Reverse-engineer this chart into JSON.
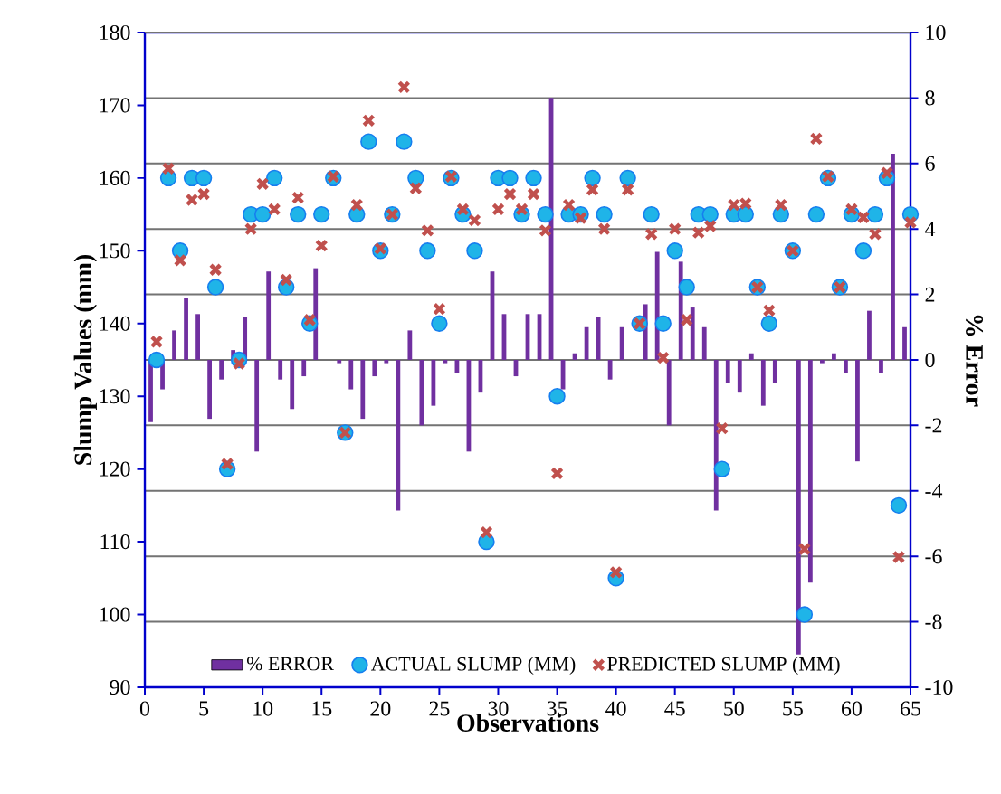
{
  "chart_data": {
    "type": "scatter",
    "xlabel": "Observations",
    "ylabel": "Slump Values (mm)",
    "y2label": "% Error",
    "xlim": [
      0,
      65
    ],
    "xticks": [
      0,
      5,
      10,
      15,
      20,
      25,
      30,
      35,
      40,
      45,
      50,
      55,
      60,
      65
    ],
    "ylim": [
      90,
      180
    ],
    "yticks": [
      90,
      100,
      110,
      120,
      130,
      140,
      150,
      160,
      170,
      180
    ],
    "y2lim": [
      -10,
      10
    ],
    "y2ticks": [
      -10,
      -8,
      -6,
      -4,
      -2,
      0,
      2,
      4,
      6,
      8,
      10
    ],
    "grid": "y",
    "legend": "bottom",
    "series": [
      {
        "name": "% ERROR",
        "type": "bar",
        "axis": "y2",
        "color": "#7030a0",
        "x": [
          0.5,
          1.5,
          2.5,
          3.5,
          4.5,
          5.5,
          6.5,
          7.5,
          8.5,
          9.5,
          10.5,
          11.5,
          12.5,
          13.5,
          14.5,
          15.5,
          16.5,
          17.5,
          18.5,
          19.5,
          20.5,
          21.5,
          22.5,
          23.5,
          24.5,
          25.5,
          26.5,
          27.5,
          28.5,
          29.5,
          30.5,
          31.5,
          32.5,
          33.5,
          34.5,
          35.5,
          36.5,
          37.5,
          38.5,
          39.5,
          40.5,
          41.5,
          42.5,
          43.5,
          44.5,
          45.5,
          46.5,
          47.5,
          48.5,
          49.5,
          50.5,
          51.5,
          52.5,
          53.5,
          54.5,
          55.5,
          56.5,
          57.5,
          58.5,
          59.5,
          60.5,
          61.5,
          62.5,
          63.5,
          64.5
        ],
        "values": [
          -1.9,
          -0.9,
          0.9,
          1.9,
          1.4,
          -1.8,
          -0.6,
          0.3,
          1.3,
          -2.8,
          2.7,
          -0.6,
          -1.5,
          -0.5,
          2.8,
          0,
          -0.1,
          -0.9,
          -1.8,
          -0.5,
          -0.1,
          -4.6,
          0.9,
          -2.0,
          -1.4,
          -0.1,
          -0.4,
          -2.8,
          -1.0,
          2.7,
          1.4,
          -0.5,
          1.4,
          1.4,
          8.0,
          -0.9,
          0.2,
          1.0,
          1.3,
          -0.6,
          1.0,
          0,
          1.7,
          3.3,
          -2.0,
          3.0,
          1.6,
          1.0,
          -4.6,
          -0.7,
          -1.0,
          0.2,
          -1.4,
          -0.7,
          0,
          -9.0,
          -6.8,
          -0.1,
          0.2,
          -0.4,
          -3.1,
          1.5,
          -0.4,
          6.3,
          1.0
        ]
      },
      {
        "name": "ACTUAL SLUMP (MM)",
        "marker": "circle",
        "color": "#1fb4e8",
        "x": [
          1,
          2,
          3,
          4,
          5,
          6,
          7,
          8,
          9,
          10,
          11,
          12,
          13,
          14,
          15,
          16,
          17,
          18,
          19,
          20,
          21,
          22,
          23,
          24,
          25,
          26,
          27,
          28,
          29,
          30,
          31,
          32,
          33,
          34,
          35,
          36,
          37,
          38,
          39,
          40,
          41,
          42,
          43,
          44,
          45,
          46,
          47,
          48,
          49,
          50,
          51,
          52,
          53,
          54,
          55,
          56,
          57,
          58,
          59,
          60,
          61,
          62,
          63,
          64,
          65
        ],
        "values": [
          135,
          160,
          150,
          160,
          160,
          145,
          120,
          135,
          155,
          155,
          160,
          145,
          155,
          140,
          155,
          160,
          125,
          155,
          165,
          150,
          155,
          165,
          160,
          150,
          140,
          160,
          155,
          150,
          110,
          160,
          160,
          155,
          160,
          155,
          130,
          155,
          155,
          160,
          155,
          105,
          160,
          140,
          155,
          140,
          150,
          145,
          155,
          155,
          120,
          155,
          155,
          145,
          140,
          155,
          150,
          100,
          155,
          160,
          145,
          155,
          150,
          155,
          160,
          115,
          155
        ]
      },
      {
        "name": "PREDICTED SLUMP (MM)",
        "marker": "cross",
        "color": "#c0504d",
        "x": [
          1,
          2,
          3,
          4,
          5,
          6,
          7,
          8,
          9,
          10,
          11,
          12,
          13,
          14,
          15,
          16,
          17,
          18,
          19,
          20,
          21,
          22,
          23,
          24,
          25,
          26,
          27,
          28,
          29,
          30,
          31,
          32,
          33,
          34,
          35,
          36,
          37,
          38,
          39,
          40,
          41,
          42,
          43,
          44,
          45,
          46,
          47,
          48,
          49,
          50,
          51,
          52,
          53,
          54,
          55,
          56,
          57,
          58,
          59,
          60,
          61,
          62,
          63,
          64,
          65
        ],
        "values": [
          137.5,
          161.3,
          148.7,
          157,
          157.8,
          147.4,
          120.7,
          134.5,
          153,
          159.2,
          155.7,
          146,
          157.3,
          140.5,
          150.7,
          160.2,
          125,
          156.3,
          167.9,
          150.3,
          155,
          172.5,
          158.6,
          152.8,
          142,
          160.2,
          155.7,
          154.2,
          111.3,
          155.7,
          157.8,
          155.7,
          157.8,
          152.8,
          119.4,
          156.3,
          154.5,
          158.4,
          153,
          105.8,
          158.4,
          140,
          152.3,
          135.3,
          153,
          140.5,
          152.5,
          153.4,
          125.6,
          156.3,
          156.5,
          145,
          141.8,
          156.3,
          150,
          109,
          165.4,
          160.2,
          145,
          155.7,
          154.6,
          152.3,
          160.7,
          107.9,
          153.9
        ]
      }
    ]
  }
}
